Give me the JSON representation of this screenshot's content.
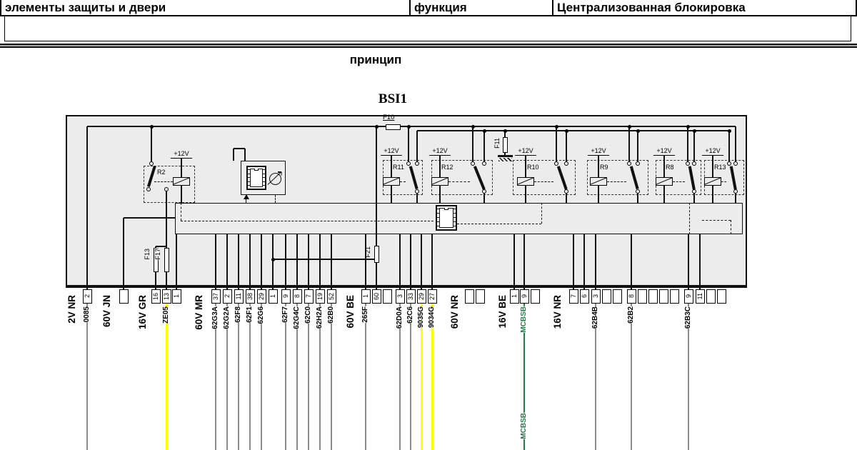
{
  "header": {
    "cells": [
      "элементы защиты и двери",
      "функция",
      "Централизованная блокировка"
    ]
  },
  "title": "принцип",
  "unit": "BSI1",
  "supply_label": "+12V",
  "colors": {
    "box_fill": "#ececec",
    "wire_gray": "#8c8c8c",
    "wire_yellow": "#ffff00",
    "wire_green": "#1f8048"
  },
  "fuses": {
    "f10": "F10",
    "f11": "F11",
    "f13": "F13",
    "f17": "F17",
    "f21": "F21"
  },
  "relays": [
    {
      "label": "R2"
    },
    {
      "label": "R11"
    },
    {
      "label": "R12"
    },
    {
      "label": "R10"
    },
    {
      "label": "R9"
    },
    {
      "label": "R8"
    },
    {
      "label": "R13"
    }
  ],
  "connectors": [
    {
      "name": "2V NR",
      "pins": [
        {
          "n": "2",
          "wire": "0085",
          "color": "gray"
        }
      ]
    },
    {
      "name": "60V JN",
      "pins": [
        {
          "n": ""
        }
      ]
    },
    {
      "name": "16V GR",
      "pins": [
        {
          "n": "16"
        },
        {
          "n": "13",
          "wire": "ZE05",
          "color": "yellow"
        },
        {
          "n": "1"
        }
      ]
    },
    {
      "name": "60V MR",
      "pins": [
        {
          "n": "37",
          "wire": "62G3A",
          "color": "gray"
        },
        {
          "n": "2",
          "wire": "62G2A",
          "color": "gray"
        },
        {
          "n": "11",
          "wire": "62F8",
          "color": "gray"
        },
        {
          "n": "38",
          "wire": "62F1",
          "color": "gray"
        },
        {
          "n": "29",
          "wire": "62G6",
          "color": "gray"
        },
        {
          "n": "1"
        },
        {
          "n": "9",
          "wire": "62F7",
          "color": "gray"
        },
        {
          "n": "8",
          "wire": "62G4C",
          "color": "gray"
        },
        {
          "n": "7",
          "wire": "62C0",
          "color": "gray"
        },
        {
          "n": "19",
          "wire": "62H2A",
          "color": "gray"
        },
        {
          "n": "52",
          "wire": "62B0",
          "color": "gray"
        }
      ]
    },
    {
      "name": "60V BE",
      "pins": [
        {
          "n": "1",
          "wire": "265F",
          "color": "gray"
        },
        {
          "n": "60"
        },
        {
          "n": ""
        },
        {
          "n": "3",
          "wire": "62D0A",
          "color": "gray"
        },
        {
          "n": "33",
          "wire": "62C6",
          "color": "gray"
        },
        {
          "n": "29",
          "wire": "9035G",
          "color": "yellow"
        },
        {
          "n": "27",
          "wire": "9034G",
          "color": "yellow"
        }
      ]
    },
    {
      "name": "60V NR",
      "pins": [
        {
          "n": ""
        },
        {
          "n": ""
        }
      ]
    },
    {
      "name": "16V BE",
      "pins": [
        {
          "n": "1"
        },
        {
          "n": "9",
          "wire": "MCBSB",
          "color": "green",
          "wire_label_repeat": true
        },
        {
          "n": ""
        }
      ]
    },
    {
      "name": "16V NR",
      "pins": [
        {
          "n": "7"
        },
        {
          "n": "6"
        },
        {
          "n": "3",
          "wire": "62B4B",
          "color": "gray"
        },
        {
          "n": ""
        },
        {
          "n": ""
        },
        {
          "n": "8",
          "wire": "62B2",
          "color": "gray"
        },
        {
          "n": ""
        },
        {
          "n": ""
        },
        {
          "n": ""
        },
        {
          "n": ""
        },
        {
          "n": "9",
          "wire": "62B3C",
          "color": "gray"
        },
        {
          "n": "11"
        },
        {
          "n": ""
        },
        {
          "n": ""
        }
      ]
    }
  ]
}
